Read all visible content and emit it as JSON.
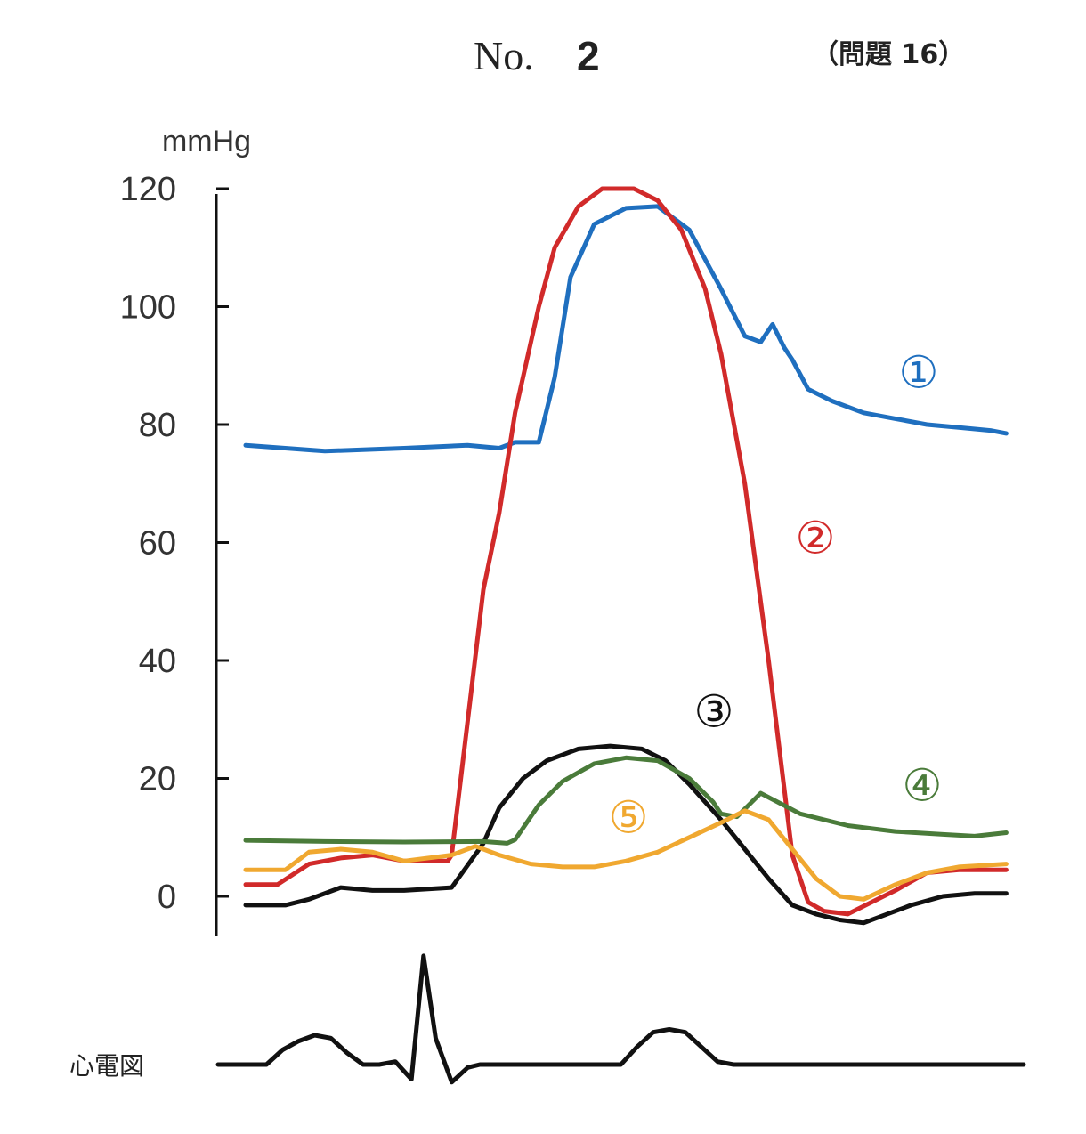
{
  "header": {
    "no_label": "No.",
    "no_value": "2",
    "question_label": "（問題 16）"
  },
  "chart_data": {
    "type": "line",
    "ylabel": "mmHg",
    "ylim": [
      -7,
      120
    ],
    "yticks": [
      0,
      20,
      40,
      60,
      80,
      100,
      120
    ],
    "ytick_labels": [
      "0",
      "20",
      "40",
      "60",
      "80",
      "100",
      "120"
    ],
    "xlim": [
      0,
      100
    ],
    "grid": false,
    "legend": "none",
    "series": [
      {
        "name": "①",
        "color": "#1f6fbf",
        "x": [
          0,
          10,
          20,
          28,
          32,
          34,
          37,
          39,
          41,
          44,
          48,
          52,
          56,
          60,
          63,
          65,
          66.5,
          68,
          69,
          71,
          74,
          78,
          82,
          86,
          90,
          94,
          96
        ],
        "y": [
          76.5,
          75.5,
          76,
          76.5,
          76,
          77,
          77,
          88,
          105,
          114,
          116.7,
          117,
          113,
          103,
          95,
          94,
          97,
          93,
          91,
          86,
          84,
          82,
          81,
          80,
          79.5,
          79,
          78.5
        ]
      },
      {
        "name": "②",
        "color": "#d12a2a",
        "x": [
          0,
          4,
          8,
          12,
          16,
          20,
          25.5,
          26,
          30,
          32,
          34,
          37,
          39,
          42,
          45,
          49,
          52,
          55,
          58,
          60,
          63,
          66,
          69,
          71,
          73,
          76,
          79,
          82,
          86,
          90,
          94,
          96
        ],
        "y": [
          2,
          2,
          5.5,
          6.5,
          7,
          6,
          6,
          7,
          52,
          65,
          82,
          100,
          110,
          117,
          120,
          120,
          118,
          113,
          103,
          92,
          70,
          40,
          7,
          -1,
          -2.5,
          -3,
          -1,
          1,
          4,
          4.5,
          4.5,
          4.5
        ],
        "label_x": 70,
        "label_y": 60
      },
      {
        "name": "③",
        "color": "#111111",
        "x": [
          0,
          5,
          8,
          12,
          16,
          20,
          26,
          30,
          32,
          35,
          38,
          42,
          46,
          50,
          53,
          56,
          60,
          63,
          66,
          69,
          72,
          75,
          78,
          80,
          84,
          88,
          92,
          96
        ],
        "y": [
          -1.5,
          -1.5,
          -0.5,
          1.5,
          1,
          1,
          1.5,
          9,
          15,
          20,
          23,
          25,
          25.5,
          25,
          23,
          19,
          13,
          8,
          3,
          -1.5,
          -3,
          -4,
          -4.5,
          -3.5,
          -1.5,
          0,
          0.5,
          0.5
        ],
        "label_x": 46,
        "label_y": 30
      },
      {
        "name": "④",
        "color": "#4a7b3a",
        "x": [
          0,
          10,
          20,
          30,
          33,
          34,
          37,
          40,
          44,
          48,
          52,
          56,
          59,
          60,
          62,
          65,
          70,
          76,
          82,
          88,
          92,
          96
        ],
        "y": [
          9.5,
          9.3,
          9.2,
          9.3,
          9,
          9.6,
          15.5,
          19.5,
          22.5,
          23.5,
          23,
          20,
          16,
          14,
          13.5,
          17.5,
          14,
          12,
          11,
          10.5,
          10.2,
          10.8
        ],
        "label_x": 80,
        "label_y": 18
      },
      {
        "name": "⑤",
        "color": "#f0a830",
        "x": [
          0,
          5,
          8,
          12,
          16,
          20,
          26,
          29,
          32,
          36,
          40,
          44,
          48,
          52,
          56,
          60,
          63,
          66,
          69,
          72,
          75,
          78,
          82,
          86,
          90,
          96
        ],
        "y": [
          4.5,
          4.5,
          7.5,
          8,
          7.5,
          6,
          7,
          8.5,
          7,
          5.5,
          5,
          5,
          6,
          7.5,
          10,
          12.5,
          14.5,
          13,
          8,
          3,
          0,
          -0.5,
          2,
          4,
          5,
          5.5
        ],
        "label_x": 45,
        "label_y": 14
      }
    ],
    "ecg": {
      "label": "心電図",
      "color": "#111111",
      "x": [
        0,
        6,
        8,
        10,
        12,
        14,
        16,
        18,
        20,
        22,
        24,
        25.5,
        27,
        29,
        31,
        32.5,
        34,
        36,
        38,
        44,
        50,
        52,
        54,
        56,
        58,
        60,
        62,
        64,
        68,
        80,
        100
      ],
      "y": [
        0,
        0,
        2.5,
        4,
        5,
        4.5,
        2,
        0,
        0,
        0.5,
        -2.5,
        18.5,
        4.5,
        -3,
        -0.5,
        0,
        0,
        0,
        0,
        0,
        0,
        3,
        5.5,
        6,
        5.5,
        3,
        0.5,
        0,
        0,
        0,
        0
      ]
    }
  }
}
